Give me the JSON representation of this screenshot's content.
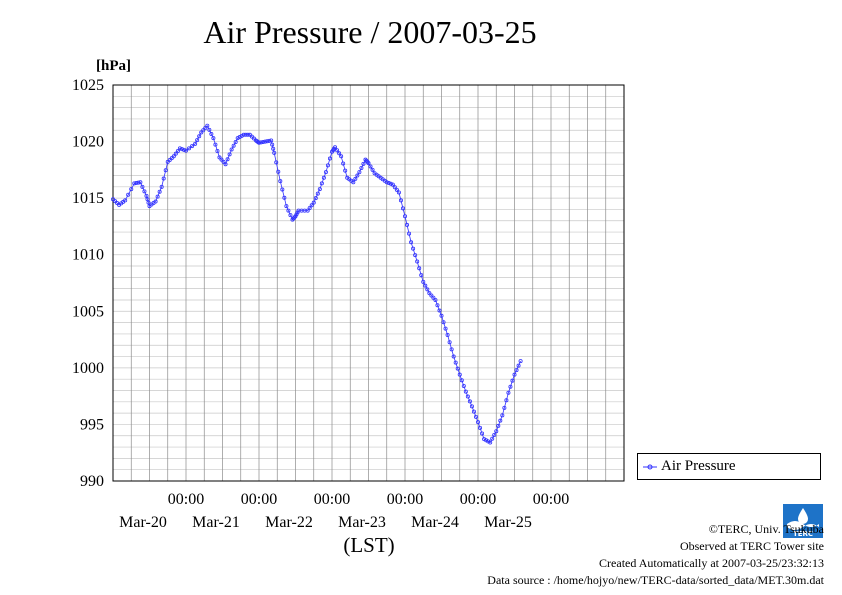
{
  "chart_data": {
    "type": "line",
    "title": "Air Pressure / 2007-03-25",
    "ylabel": "[hPa]",
    "xlabel": "(LST)",
    "ylim": [
      990,
      1025
    ],
    "yticks": [
      990,
      995,
      1000,
      1005,
      1010,
      1015,
      1020,
      1025
    ],
    "xlim": [
      "2007-03-19 00:00",
      "2007-03-26 00:00"
    ],
    "xticks": [
      {
        "time": "00:00",
        "date": "Mar-20"
      },
      {
        "time": "00:00",
        "date": "Mar-21"
      },
      {
        "time": "00:00",
        "date": "Mar-22"
      },
      {
        "time": "00:00",
        "date": "Mar-23"
      },
      {
        "time": "00:00",
        "date": "Mar-24"
      },
      {
        "time": "00:00",
        "date": "Mar-25"
      }
    ],
    "x_tick_times": [
      "2007-03-20 00:00",
      "2007-03-21 00:00",
      "2007-03-22 00:00",
      "2007-03-23 00:00",
      "2007-03-24 00:00",
      "2007-03-25 00:00"
    ],
    "grid": true,
    "legend_position": "right",
    "series": [
      {
        "name": "Air Pressure",
        "color": "#3333ff",
        "points": [
          [
            "2007-03-19 00:00",
            1014.9
          ],
          [
            "2007-03-19 02:00",
            1014.4
          ],
          [
            "2007-03-19 04:00",
            1014.8
          ],
          [
            "2007-03-19 07:00",
            1016.3
          ],
          [
            "2007-03-19 09:00",
            1016.4
          ],
          [
            "2007-03-19 11:00",
            1015.2
          ],
          [
            "2007-03-19 12:00",
            1014.3
          ],
          [
            "2007-03-19 14:00",
            1014.7
          ],
          [
            "2007-03-19 16:00",
            1016.0
          ],
          [
            "2007-03-19 18:00",
            1018.2
          ],
          [
            "2007-03-19 20:00",
            1018.7
          ],
          [
            "2007-03-19 22:00",
            1019.4
          ],
          [
            "2007-03-20 00:00",
            1019.2
          ],
          [
            "2007-03-20 03:00",
            1019.8
          ],
          [
            "2007-03-20 05:00",
            1020.8
          ],
          [
            "2007-03-20 07:00",
            1021.4
          ],
          [
            "2007-03-20 09:00",
            1020.3
          ],
          [
            "2007-03-20 11:00",
            1018.6
          ],
          [
            "2007-03-20 13:00",
            1018.0
          ],
          [
            "2007-03-20 15:00",
            1019.3
          ],
          [
            "2007-03-20 17:00",
            1020.3
          ],
          [
            "2007-03-20 19:00",
            1020.6
          ],
          [
            "2007-03-20 21:00",
            1020.6
          ],
          [
            "2007-03-20 23:00",
            1020.1
          ],
          [
            "2007-03-21 00:00",
            1019.9
          ],
          [
            "2007-03-21 02:00",
            1020.0
          ],
          [
            "2007-03-21 04:00",
            1020.1
          ],
          [
            "2007-03-21 05:00",
            1019.0
          ],
          [
            "2007-03-21 07:00",
            1016.5
          ],
          [
            "2007-03-21 09:00",
            1014.3
          ],
          [
            "2007-03-21 11:00",
            1013.1
          ],
          [
            "2007-03-21 12:00",
            1013.4
          ],
          [
            "2007-03-21 13:00",
            1013.9
          ],
          [
            "2007-03-21 16:00",
            1013.9
          ],
          [
            "2007-03-21 18:00",
            1014.6
          ],
          [
            "2007-03-21 20:00",
            1015.8
          ],
          [
            "2007-03-21 22:00",
            1017.3
          ],
          [
            "2007-03-22 00:00",
            1019.1
          ],
          [
            "2007-03-22 01:00",
            1019.5
          ],
          [
            "2007-03-22 03:00",
            1018.7
          ],
          [
            "2007-03-22 05:00",
            1016.8
          ],
          [
            "2007-03-22 07:00",
            1016.4
          ],
          [
            "2007-03-22 09:00",
            1017.3
          ],
          [
            "2007-03-22 11:00",
            1018.4
          ],
          [
            "2007-03-22 12:00",
            1018.1
          ],
          [
            "2007-03-22 14:00",
            1017.2
          ],
          [
            "2007-03-22 16:00",
            1016.8
          ],
          [
            "2007-03-22 18:00",
            1016.4
          ],
          [
            "2007-03-22 20:00",
            1016.2
          ],
          [
            "2007-03-22 22:00",
            1015.5
          ],
          [
            "2007-03-23 00:00",
            1013.4
          ],
          [
            "2007-03-23 02:00",
            1011.1
          ],
          [
            "2007-03-23 04:00",
            1009.4
          ],
          [
            "2007-03-23 06:00",
            1007.6
          ],
          [
            "2007-03-23 08:00",
            1006.6
          ],
          [
            "2007-03-23 10:00",
            1006.0
          ],
          [
            "2007-03-23 12:00",
            1004.6
          ],
          [
            "2007-03-23 14:00",
            1002.9
          ],
          [
            "2007-03-23 16:00",
            1001.0
          ],
          [
            "2007-03-23 18:00",
            999.4
          ],
          [
            "2007-03-23 20:00",
            997.9
          ],
          [
            "2007-03-23 22:00",
            996.6
          ],
          [
            "2007-03-24 00:00",
            995.2
          ],
          [
            "2007-03-24 02:00",
            993.7
          ],
          [
            "2007-03-24 04:00",
            993.4
          ],
          [
            "2007-03-24 06:00",
            994.4
          ],
          [
            "2007-03-24 08:00",
            995.8
          ],
          [
            "2007-03-24 10:00",
            997.8
          ],
          [
            "2007-03-24 12:00",
            999.4
          ],
          [
            "2007-03-24 14:00",
            1000.6
          ]
        ]
      }
    ]
  },
  "credits": {
    "copyright": "©TERC, Univ. Tsukuba",
    "observed": "Observed at TERC Tower site",
    "created": "Created Automatically at 2007-03-25/23:32:13",
    "source": "Data source : /home/hojyo/new/TERC-data/sorted_data/MET.30m.dat"
  },
  "logo": {
    "name": "terc-logo",
    "text": "TERC",
    "color": "#1e73c8"
  }
}
